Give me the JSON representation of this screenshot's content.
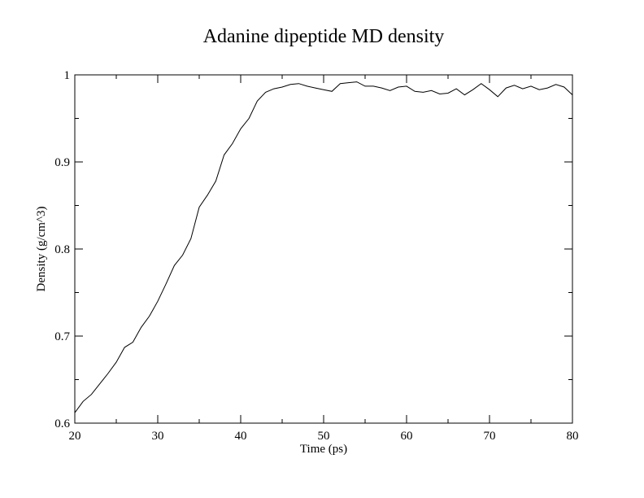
{
  "chart_data": {
    "type": "line",
    "title": "Adanine dipeptide MD density",
    "xlabel": "Time (ps)",
    "ylabel": "Density (g/cm^3)",
    "xlim": [
      20,
      80
    ],
    "ylim": [
      0.6,
      1.0
    ],
    "x_ticks": [
      20,
      30,
      40,
      50,
      60,
      70,
      80
    ],
    "x_tick_labels": [
      "20",
      "30",
      "40",
      "50",
      "60",
      "70",
      "80"
    ],
    "y_ticks": [
      0.6,
      0.7,
      0.8,
      0.9,
      1.0
    ],
    "y_tick_labels": [
      "0.6",
      "0.7",
      "0.8",
      "0.9",
      "1"
    ],
    "minor_x_step": 5,
    "minor_y_step": 0.05,
    "grid": false,
    "legend": "none",
    "line_color": "#000000",
    "series": [
      {
        "x": [
          20,
          21,
          22,
          23,
          24,
          25,
          26,
          27,
          28,
          29,
          30,
          31,
          32,
          33,
          34,
          35,
          36,
          37,
          38,
          39,
          40,
          41,
          42,
          43,
          44,
          45,
          46,
          47,
          48,
          49,
          50,
          51,
          52,
          53,
          54,
          55,
          56,
          57,
          58,
          59,
          60,
          61,
          62,
          63,
          64,
          65,
          66,
          67,
          68,
          69,
          70,
          71,
          72,
          73,
          74,
          75,
          76,
          77,
          78,
          79,
          80
        ],
        "y": [
          0.612,
          0.625,
          0.633,
          0.645,
          0.657,
          0.67,
          0.687,
          0.693,
          0.71,
          0.723,
          0.74,
          0.76,
          0.781,
          0.793,
          0.812,
          0.848,
          0.862,
          0.878,
          0.908,
          0.921,
          0.938,
          0.95,
          0.97,
          0.98,
          0.984,
          0.986,
          0.989,
          0.99,
          0.987,
          0.985,
          0.983,
          0.981,
          0.99,
          0.991,
          0.992,
          0.987,
          0.987,
          0.985,
          0.982,
          0.986,
          0.987,
          0.981,
          0.98,
          0.982,
          0.978,
          0.979,
          0.984,
          0.977,
          0.983,
          0.99,
          0.983,
          0.975,
          0.985,
          0.988,
          0.984,
          0.987,
          0.983,
          0.985,
          0.989,
          0.986,
          0.977
        ]
      }
    ]
  }
}
